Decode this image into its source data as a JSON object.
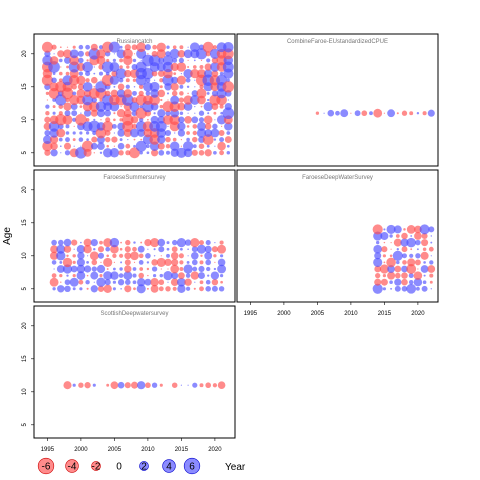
{
  "chart_data": {
    "type": "scatter",
    "subtype": "bubble-residual-panels",
    "ylabel": "Age",
    "xlabel": "Year",
    "x_ticks": [
      1995,
      2000,
      2005,
      2010,
      2015,
      2020
    ],
    "y_ticks": [
      5,
      10,
      15,
      20
    ],
    "xlim": [
      1993,
      2023
    ],
    "ylim": [
      3,
      23
    ],
    "colors": {
      "negative": "#ff4d4d",
      "positive": "#4d4dff"
    },
    "legend": {
      "values": [
        -6,
        -4,
        -2,
        0,
        2,
        4,
        6
      ],
      "labels": [
        "-6",
        "-4",
        "-2",
        "0",
        "2",
        "4",
        "6"
      ]
    },
    "panels": [
      {
        "title": "Russiancatch",
        "x_range": [
          1995,
          2022
        ],
        "ages": [
          5,
          21
        ],
        "seed": 11,
        "density": 1.0,
        "scale": 0.75
      },
      {
        "title": "CombineFaroe-EUstandardizedCPUE",
        "x_range": [
          2005,
          2022
        ],
        "ages": [
          11,
          11
        ],
        "seed": 23,
        "density": 1.0,
        "scale": 0.6
      },
      {
        "title": "FaroeseSummersurvey",
        "x_range": [
          1996,
          2021
        ],
        "ages": [
          5,
          12
        ],
        "seed": 37,
        "density": 1.0,
        "scale": 0.6
      },
      {
        "title": "FaroeseDeepWaterSurvey",
        "x_range": [
          2014,
          2022
        ],
        "ages": [
          5,
          14
        ],
        "seed": 41,
        "density": 1.0,
        "scale": 0.65
      },
      {
        "title": "ScottishDeepwatersurvey",
        "x_range": [
          1998,
          2021
        ],
        "ages": [
          11,
          11
        ],
        "seed": 53,
        "density": 0.75,
        "scale": 0.6
      }
    ]
  }
}
